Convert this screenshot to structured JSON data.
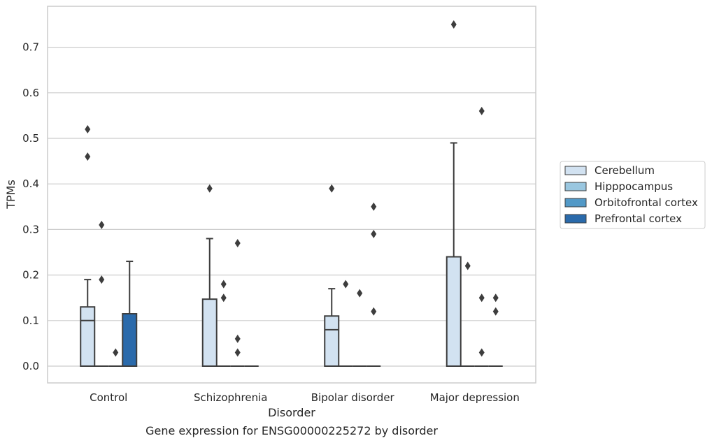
{
  "chart_data": {
    "type": "box",
    "title": "",
    "caption": "Gene expression for ENSG00000225272 by disorder",
    "xlabel": "Disorder",
    "ylabel": "TPMs",
    "ylim": [
      -0.036,
      0.79
    ],
    "yticks": [
      "0.0",
      "0.1",
      "0.2",
      "0.3",
      "0.4",
      "0.5",
      "0.6",
      "0.7"
    ],
    "grid": "horizontal",
    "legend_position": "right-center",
    "categories": [
      "Control",
      "Schizophrenia",
      "Bipolar disorder",
      "Major depression"
    ],
    "series": [
      {
        "name": "Cerebellum",
        "color": "#d2e2f1",
        "boxes": [
          {
            "min": 0.0,
            "q1": 0.0,
            "median": 0.1,
            "q3": 0.13,
            "max": 0.19,
            "outliers": [
              0.46,
              0.52
            ]
          },
          {
            "min": 0.0,
            "q1": 0.0,
            "median": 0.0,
            "q3": 0.147,
            "max": 0.28,
            "outliers": [
              0.39
            ]
          },
          {
            "min": 0.0,
            "q1": 0.0,
            "median": 0.08,
            "q3": 0.11,
            "max": 0.17,
            "outliers": [
              0.39
            ]
          },
          {
            "min": 0.0,
            "q1": 0.0,
            "median": 0.0,
            "q3": 0.24,
            "max": 0.49,
            "outliers": [
              0.75
            ]
          }
        ]
      },
      {
        "name": "Hipppocampus",
        "color": "#9ac7e0",
        "boxes": [
          {
            "min": 0.0,
            "q1": 0.0,
            "median": 0.0,
            "q3": 0.0,
            "max": 0.0,
            "outliers": [
              0.19,
              0.31
            ]
          },
          {
            "min": 0.0,
            "q1": 0.0,
            "median": 0.0,
            "q3": 0.0,
            "max": 0.0,
            "outliers": [
              0.15,
              0.18
            ]
          },
          {
            "min": 0.0,
            "q1": 0.0,
            "median": 0.0,
            "q3": 0.0,
            "max": 0.0,
            "outliers": [
              0.18
            ]
          },
          {
            "min": 0.0,
            "q1": 0.0,
            "median": 0.0,
            "q3": 0.0,
            "max": 0.0,
            "outliers": [
              0.22
            ]
          }
        ]
      },
      {
        "name": "Orbitofrontal cortex",
        "color": "#5299c7",
        "boxes": [
          {
            "min": 0.0,
            "q1": 0.0,
            "median": 0.0,
            "q3": 0.0,
            "max": 0.0,
            "outliers": [
              0.03
            ]
          },
          {
            "min": 0.0,
            "q1": 0.0,
            "median": 0.0,
            "q3": 0.0,
            "max": 0.0,
            "outliers": [
              0.03,
              0.06,
              0.27
            ]
          },
          {
            "min": 0.0,
            "q1": 0.0,
            "median": 0.0,
            "q3": 0.0,
            "max": 0.0,
            "outliers": [
              0.16
            ]
          },
          {
            "min": 0.0,
            "q1": 0.0,
            "median": 0.0,
            "q3": 0.0,
            "max": 0.0,
            "outliers": [
              0.03,
              0.15,
              0.56
            ]
          }
        ]
      },
      {
        "name": "Prefrontal cortex",
        "color": "#2a6aab",
        "boxes": [
          {
            "min": 0.0,
            "q1": 0.0,
            "median": 0.0,
            "q3": 0.115,
            "max": 0.23,
            "outliers": []
          },
          {
            "min": 0.0,
            "q1": 0.0,
            "median": 0.0,
            "q3": 0.0,
            "max": 0.0,
            "outliers": []
          },
          {
            "min": 0.0,
            "q1": 0.0,
            "median": 0.0,
            "q3": 0.0,
            "max": 0.0,
            "outliers": [
              0.12,
              0.29,
              0.35
            ]
          },
          {
            "min": 0.0,
            "q1": 0.0,
            "median": 0.0,
            "q3": 0.0,
            "max": 0.0,
            "outliers": [
              0.12,
              0.15
            ]
          }
        ]
      }
    ]
  }
}
